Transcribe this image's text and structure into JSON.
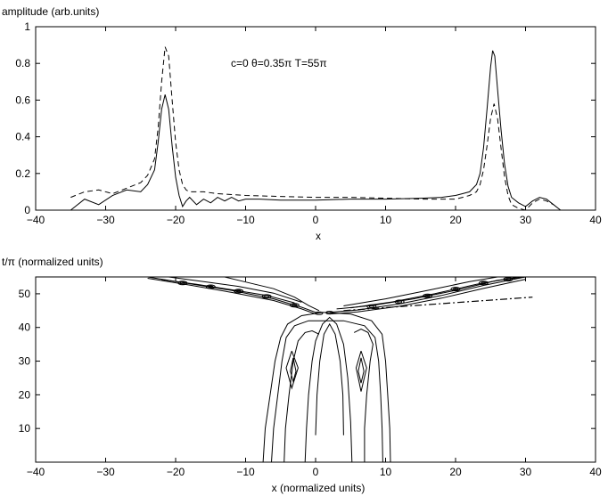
{
  "chart_data": [
    {
      "type": "line",
      "ylabel": "amplitude (arb.units)",
      "xlabel": "x",
      "annotation": "c=0  θ=0.35π  T=55π",
      "xlim": [
        -40,
        40
      ],
      "ylim": [
        0,
        1
      ],
      "xticks": [
        "−40",
        "−30",
        "−20",
        "−10",
        "0",
        "10",
        "20",
        "30",
        "40"
      ],
      "yticks": [
        "0",
        "0.2",
        "0.4",
        "0.6",
        "0.8",
        "1"
      ],
      "grid": false,
      "series": [
        {
          "style": "solid",
          "x": [
            -35,
            -33,
            -31,
            -29,
            -27,
            -25,
            -24,
            -23,
            -22.5,
            -22,
            -21.5,
            -21,
            -20.5,
            -20,
            -19.5,
            -19,
            -18.5,
            -18,
            -17,
            -16,
            -15,
            -14,
            -13,
            -12,
            -11,
            -10,
            -8,
            -5,
            0,
            5,
            10,
            15,
            18,
            20,
            21,
            22,
            23,
            23.5,
            24,
            24.5,
            25,
            25.3,
            25.6,
            26,
            26.5,
            27,
            27.5,
            28,
            29,
            30,
            31,
            32,
            33,
            34,
            35
          ],
          "y": [
            0.0,
            0.06,
            0.03,
            0.08,
            0.11,
            0.1,
            0.14,
            0.22,
            0.37,
            0.55,
            0.63,
            0.55,
            0.35,
            0.18,
            0.08,
            0.02,
            0.05,
            0.07,
            0.03,
            0.06,
            0.04,
            0.07,
            0.05,
            0.07,
            0.05,
            0.06,
            0.06,
            0.055,
            0.055,
            0.06,
            0.06,
            0.065,
            0.07,
            0.08,
            0.09,
            0.1,
            0.14,
            0.2,
            0.34,
            0.55,
            0.78,
            0.87,
            0.84,
            0.66,
            0.44,
            0.25,
            0.13,
            0.07,
            0.04,
            0.02,
            0.05,
            0.07,
            0.06,
            0.03,
            0.0
          ]
        },
        {
          "style": "dashed",
          "x": [
            -35,
            -33,
            -31,
            -29,
            -27,
            -25,
            -24,
            -23,
            -22.5,
            -22,
            -21.5,
            -21,
            -20.5,
            -20,
            -19.5,
            -19,
            -18.5,
            -18,
            -16,
            -14,
            -12,
            -10,
            -5,
            0,
            5,
            10,
            15,
            20,
            21,
            22,
            23,
            23.5,
            24,
            24.5,
            25,
            25.5,
            26,
            26.5,
            27,
            27.5,
            28,
            29,
            30,
            31,
            32,
            33,
            34
          ],
          "y": [
            0.07,
            0.1,
            0.11,
            0.09,
            0.12,
            0.15,
            0.19,
            0.28,
            0.45,
            0.7,
            0.89,
            0.84,
            0.6,
            0.37,
            0.22,
            0.14,
            0.11,
            0.1,
            0.1,
            0.09,
            0.085,
            0.08,
            0.075,
            0.07,
            0.07,
            0.065,
            0.06,
            0.06,
            0.07,
            0.08,
            0.1,
            0.14,
            0.22,
            0.35,
            0.5,
            0.58,
            0.5,
            0.34,
            0.18,
            0.08,
            0.03,
            0.01,
            0.0,
            0.04,
            0.06,
            0.05,
            0.03
          ]
        }
      ]
    },
    {
      "type": "contour",
      "ylabel": "t/π (normalized units)",
      "xlabel": "x (normalized units)",
      "xlim": [
        -40,
        40
      ],
      "ylim": [
        0,
        55
      ],
      "xticks": [
        "−40",
        "−30",
        "−20",
        "−10",
        "0",
        "10",
        "20",
        "30",
        "40"
      ],
      "yticks": [
        "10",
        "20",
        "30",
        "40",
        "50"
      ],
      "grid": false,
      "dashdot_line": {
        "x": [
          4,
          31
        ],
        "y": [
          45,
          49
        ]
      }
    }
  ]
}
